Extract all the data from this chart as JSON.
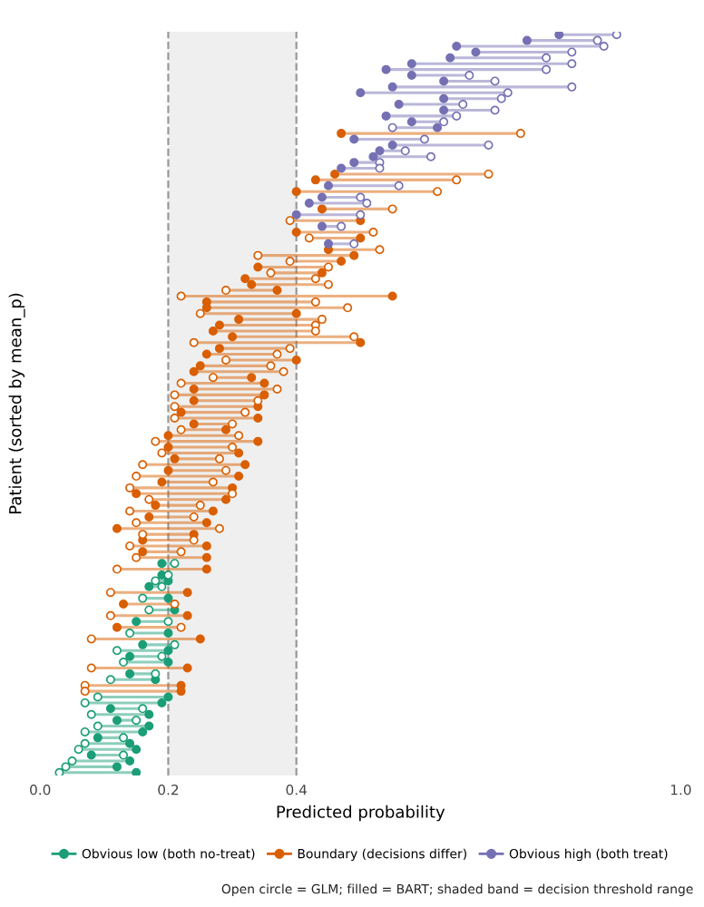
{
  "chart_data": {
    "type": "scatter",
    "orientation": "horizontal",
    "xlabel": "Predicted probability",
    "ylabel": "Patient (sorted by mean_p)",
    "categories": [
      null,
      null,
      null,
      null,
      null,
      null,
      null,
      null,
      null,
      null,
      null,
      null,
      null,
      null,
      null,
      null,
      null,
      null,
      null,
      null,
      null,
      null,
      null,
      null,
      null,
      null,
      null,
      null,
      null,
      null,
      null,
      null,
      null,
      null,
      null,
      null,
      null,
      null,
      null,
      null,
      null,
      null,
      null,
      null,
      null,
      null,
      null,
      null,
      null,
      null,
      null,
      null,
      null,
      null,
      null,
      null,
      null,
      null,
      null,
      null,
      null,
      null,
      null,
      null,
      null,
      null,
      null,
      null,
      null,
      null,
      null,
      null,
      null,
      null,
      null,
      null,
      null,
      null,
      null,
      null,
      null,
      null,
      null,
      null,
      null,
      null,
      null,
      null,
      null,
      null,
      null,
      null,
      null,
      null,
      null,
      null,
      null,
      null,
      null,
      null,
      null,
      null,
      null,
      null,
      null,
      null,
      null,
      null,
      null,
      null,
      null,
      null,
      null,
      null,
      null,
      null,
      null,
      null,
      null,
      null,
      null,
      null,
      null,
      null,
      null,
      null,
      null,
      null
    ],
    "series": [
      {
        "color": "#1b9e77",
        "values": [
          null,
          null,
          null,
          null,
          null,
          null,
          null,
          null,
          null,
          null,
          null,
          null,
          null,
          null,
          null,
          null,
          null,
          null,
          null,
          null,
          null,
          null,
          null,
          null,
          null,
          null,
          null,
          null,
          null,
          null,
          null,
          null,
          null,
          null,
          null,
          null,
          null,
          null,
          null,
          null,
          null,
          null,
          null,
          null,
          null,
          null,
          null,
          null,
          null,
          null,
          null,
          null,
          null,
          null,
          null,
          null,
          null,
          null,
          null,
          null,
          null,
          null,
          null,
          null,
          null,
          null,
          null,
          null,
          null,
          null,
          null,
          null,
          null,
          null,
          null,
          null,
          null,
          null,
          null,
          null,
          null,
          null,
          null,
          null,
          null,
          null,
          null,
          null,
          null,
          null,
          null,
          0.21,
          null,
          0.2,
          0.18,
          0.19,
          null,
          0.16,
          null,
          0.17,
          null,
          0.2,
          null,
          0.14,
          null,
          0.21,
          0.12,
          0.19,
          0.13,
          null,
          0.18,
          0.11,
          null,
          null,
          0.09,
          0.07,
          0.16,
          0.08,
          0.15,
          0.09,
          0.07,
          0.13,
          0.07,
          0.06,
          0.13,
          0.05,
          0.04,
          0.03
        ]
      },
      {
        "name": "Obvious low (both no-treat)",
        "color": "#1b9e77",
        "values": [
          null,
          null,
          null,
          null,
          null,
          null,
          null,
          null,
          null,
          null,
          null,
          null,
          null,
          null,
          null,
          null,
          null,
          null,
          null,
          null,
          null,
          null,
          null,
          null,
          null,
          null,
          null,
          null,
          null,
          null,
          null,
          null,
          null,
          null,
          null,
          null,
          null,
          null,
          null,
          null,
          null,
          null,
          null,
          null,
          null,
          null,
          null,
          null,
          null,
          null,
          null,
          null,
          null,
          null,
          null,
          null,
          null,
          null,
          null,
          null,
          null,
          null,
          null,
          null,
          null,
          null,
          null,
          null,
          null,
          null,
          null,
          null,
          null,
          null,
          null,
          null,
          null,
          null,
          null,
          null,
          null,
          null,
          null,
          null,
          null,
          null,
          null,
          null,
          null,
          null,
          null,
          0.19,
          null,
          0.19,
          0.2,
          0.17,
          null,
          0.2,
          null,
          0.21,
          null,
          0.15,
          null,
          0.2,
          null,
          0.16,
          0.2,
          0.14,
          0.2,
          null,
          0.14,
          0.18,
          null,
          null,
          0.2,
          0.19,
          0.11,
          0.17,
          0.12,
          0.17,
          0.16,
          0.09,
          0.14,
          0.15,
          0.08,
          0.14,
          0.12,
          0.15
        ]
      },
      {
        "color": "#d95f02",
        "values": [
          null,
          null,
          null,
          null,
          null,
          null,
          null,
          null,
          null,
          null,
          null,
          null,
          null,
          null,
          null,
          null,
          null,
          0.75,
          null,
          null,
          null,
          null,
          null,
          null,
          0.7,
          0.65,
          null,
          0.62,
          null,
          null,
          0.55,
          null,
          0.39,
          null,
          0.52,
          0.42,
          null,
          0.53,
          0.34,
          0.39,
          0.45,
          0.36,
          0.43,
          0.45,
          0.29,
          0.22,
          0.43,
          0.48,
          0.25,
          0.44,
          0.43,
          0.43,
          0.49,
          0.24,
          0.39,
          0.37,
          0.29,
          0.36,
          0.38,
          0.27,
          0.22,
          0.37,
          0.21,
          0.34,
          0.21,
          0.32,
          0.21,
          0.3,
          0.22,
          0.31,
          0.18,
          0.3,
          0.19,
          0.28,
          0.16,
          0.29,
          0.15,
          0.27,
          0.14,
          0.3,
          0.17,
          0.25,
          0.14,
          0.24,
          0.15,
          0.28,
          0.16,
          0.24,
          0.14,
          0.22,
          0.15,
          null,
          0.12,
          null,
          null,
          null,
          0.11,
          null,
          0.21,
          null,
          0.11,
          null,
          0.22,
          null,
          0.08,
          null,
          null,
          null,
          null,
          0.08,
          null,
          null,
          0.07,
          0.07,
          null,
          null,
          null,
          null,
          null,
          null,
          null,
          null,
          null,
          null,
          null,
          null,
          null,
          null
        ]
      },
      {
        "name": "Boundary (decisions differ)",
        "color": "#d95f02",
        "values": [
          null,
          null,
          null,
          null,
          null,
          null,
          null,
          null,
          null,
          null,
          null,
          null,
          null,
          null,
          null,
          null,
          null,
          0.47,
          null,
          null,
          null,
          null,
          null,
          null,
          0.46,
          0.43,
          null,
          0.4,
          null,
          null,
          0.44,
          null,
          0.5,
          null,
          0.4,
          0.5,
          null,
          0.45,
          0.49,
          0.47,
          0.34,
          0.44,
          0.32,
          0.33,
          0.37,
          0.55,
          0.26,
          0.26,
          0.4,
          0.31,
          0.28,
          0.27,
          0.3,
          0.5,
          0.28,
          0.26,
          0.4,
          0.25,
          0.24,
          0.33,
          0.35,
          0.24,
          0.35,
          0.24,
          0.34,
          0.22,
          0.34,
          0.24,
          0.29,
          0.2,
          0.34,
          0.2,
          0.31,
          0.21,
          0.32,
          0.2,
          0.31,
          0.19,
          0.3,
          0.15,
          0.29,
          0.18,
          0.27,
          0.17,
          0.26,
          0.12,
          0.24,
          0.16,
          0.26,
          0.16,
          0.26,
          null,
          0.26,
          null,
          null,
          null,
          0.23,
          null,
          0.13,
          null,
          0.23,
          null,
          0.12,
          null,
          0.25,
          null,
          null,
          null,
          null,
          0.23,
          null,
          null,
          0.22,
          0.22,
          null,
          null,
          null,
          null,
          null,
          null,
          null,
          null,
          null,
          null,
          null,
          null,
          null,
          null
        ]
      },
      {
        "color": "#7570b3",
        "values": [
          0.9,
          0.87,
          0.88,
          0.83,
          0.79,
          0.83,
          0.79,
          0.67,
          0.71,
          0.83,
          0.73,
          0.72,
          0.66,
          0.71,
          0.65,
          0.63,
          0.55,
          null,
          0.6,
          0.7,
          0.57,
          0.61,
          0.53,
          0.53,
          null,
          null,
          0.56,
          null,
          0.5,
          0.51,
          null,
          0.5,
          null,
          0.47,
          null,
          null,
          0.49,
          null,
          null,
          null,
          null,
          null,
          null,
          null,
          null,
          null,
          null,
          null,
          null,
          null,
          null,
          null,
          null,
          null,
          null,
          null,
          null,
          null,
          null,
          null,
          null,
          null,
          null,
          null,
          null,
          null,
          null,
          null,
          null,
          null,
          null,
          null,
          null,
          null,
          null,
          null,
          null,
          null,
          null,
          null,
          null,
          null,
          null,
          null,
          null,
          null,
          null,
          null,
          null,
          null,
          null,
          null,
          null,
          null,
          null,
          null,
          null,
          null,
          null,
          null,
          null,
          null,
          null,
          null,
          null,
          null,
          null,
          null,
          null,
          null,
          null,
          null,
          null,
          null,
          null,
          null,
          null,
          null,
          null,
          null,
          null,
          null,
          null,
          null,
          null,
          null,
          null,
          null
        ]
      },
      {
        "name": "Obvious high (both treat)",
        "color": "#7570b3",
        "values": [
          0.81,
          0.76,
          0.65,
          0.68,
          0.64,
          0.58,
          0.54,
          0.58,
          0.63,
          0.55,
          0.5,
          0.63,
          0.56,
          0.63,
          0.54,
          0.58,
          0.62,
          null,
          0.49,
          0.55,
          0.53,
          0.52,
          0.49,
          0.47,
          null,
          null,
          0.45,
          null,
          0.44,
          0.42,
          null,
          0.4,
          null,
          0.44,
          null,
          null,
          0.45,
          null,
          null,
          null,
          null,
          null,
          null,
          null,
          null,
          null,
          null,
          null,
          null,
          null,
          null,
          null,
          null,
          null,
          null,
          null,
          null,
          null,
          null,
          null,
          null,
          null,
          null,
          null,
          null,
          null,
          null,
          null,
          null,
          null,
          null,
          null,
          null,
          null,
          null,
          null,
          null,
          null,
          null,
          null,
          null,
          null,
          null,
          null,
          null,
          null,
          null,
          null,
          null,
          null,
          null,
          null,
          null,
          null,
          null,
          null,
          null,
          null,
          null,
          null,
          null,
          null,
          null,
          null,
          null,
          null,
          null,
          null,
          null,
          null,
          null,
          null,
          null,
          null,
          null,
          null,
          null,
          null,
          null,
          null,
          null,
          null,
          null,
          null,
          null,
          null,
          null,
          null
        ]
      }
    ],
    "xlim": [
      0,
      1
    ],
    "xticks": [
      {
        "value": 0,
        "label": "0.0"
      },
      0.2,
      0.4,
      {
        "value": 1,
        "label": "1.0"
      }
    ],
    "bands": [
      {
        "axis": "x",
        "from": 0.2,
        "to": 0.4,
        "color": "#efefef"
      }
    ],
    "ref_lines": [
      {
        "axis": "x",
        "value": 0.2,
        "color": "#999999",
        "line_style": "dashed"
      },
      {
        "axis": "x",
        "value": 0.4,
        "color": "#999999",
        "line_style": "dashed"
      }
    ],
    "grid": false,
    "legend": "bottom",
    "marker": "circle",
    "tick_labels": "x",
    "annotations": [
      "Open circle = GLM; filled = BART; shaded band = decision threshold range"
    ]
  }
}
